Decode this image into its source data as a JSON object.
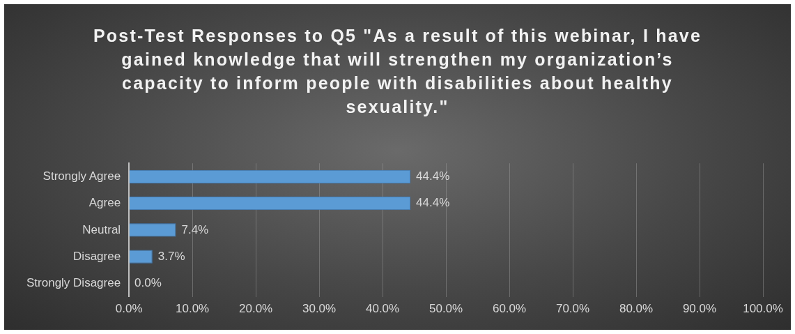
{
  "chart_data": {
    "type": "bar",
    "orientation": "horizontal",
    "title": "Post-Test Responses to Q5 \"As a result of this webinar, I have gained knowledge that will strengthen my organization’s capacity to inform people with disabilities about healthy sexuality.\"",
    "categories": [
      "Strongly Agree",
      "Agree",
      "Neutral",
      "Disagree",
      "Strongly Disagree"
    ],
    "values": [
      44.4,
      44.4,
      7.4,
      3.7,
      0.0
    ],
    "value_labels": [
      "44.4%",
      "44.4%",
      "7.4%",
      "3.7%",
      "0.0%"
    ],
    "color": "#5b9bd5",
    "xlim": [
      0,
      100
    ],
    "xticks": [
      {
        "value": 0,
        "label": "0.0%"
      },
      {
        "value": 10,
        "label": "10.0%"
      },
      {
        "value": 20,
        "label": "20.0%"
      },
      {
        "value": 30,
        "label": "30.0%"
      },
      {
        "value": 40,
        "label": "40.0%"
      },
      {
        "value": 50,
        "label": "50.0%"
      },
      {
        "value": 60,
        "label": "60.0%"
      },
      {
        "value": 70,
        "label": "70.0%"
      },
      {
        "value": 80,
        "label": "80.0%"
      },
      {
        "value": 90,
        "label": "90.0%"
      },
      {
        "value": 100,
        "label": "100.0%"
      }
    ],
    "grid": "x"
  }
}
